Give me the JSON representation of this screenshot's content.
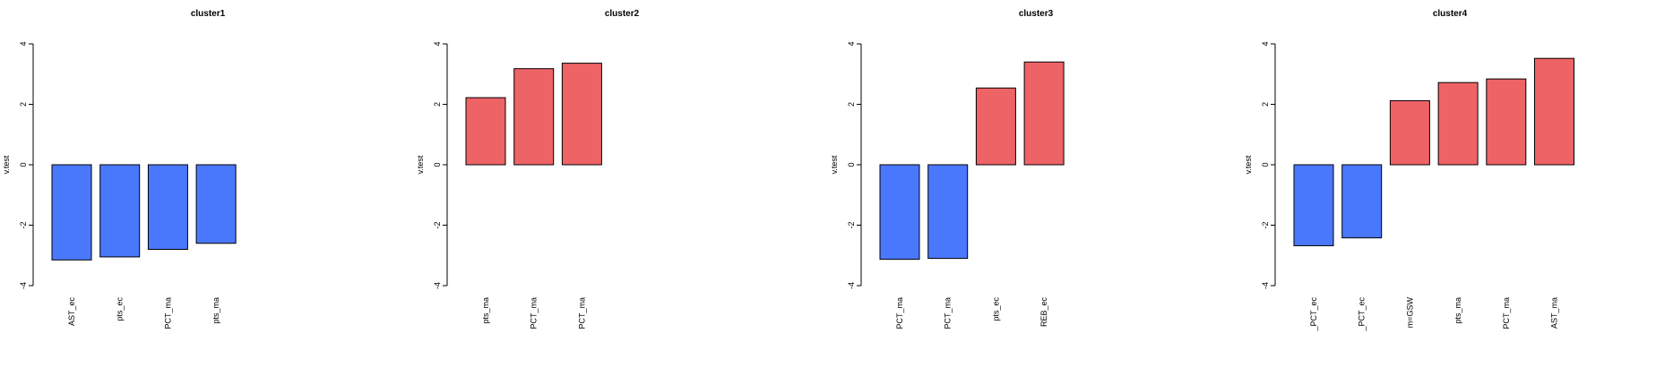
{
  "colors": {
    "positive": "#EE6366",
    "negative": "#4A78FC"
  },
  "chart_data": [
    {
      "type": "bar",
      "title": "cluster1",
      "ylabel": "v.test",
      "ylim": [
        -4,
        4
      ],
      "yticks": [
        "-4",
        "-2",
        "0",
        "2",
        "4"
      ],
      "categories": [
        "AST_ec",
        "pts_ec",
        "PCT_ma",
        "pts_ma"
      ],
      "values": [
        -3.15,
        -3.05,
        -2.8,
        -2.6
      ]
    },
    {
      "type": "bar",
      "title": "cluster2",
      "ylabel": "v.test",
      "ylim": [
        -4,
        4
      ],
      "yticks": [
        "-4",
        "-2",
        "0",
        "2",
        "4"
      ],
      "categories": [
        "pts_ma",
        "PCT_ma",
        "PCT_ma"
      ],
      "values": [
        2.22,
        3.18,
        3.36
      ]
    },
    {
      "type": "bar",
      "title": "cluster3",
      "ylabel": "v.test",
      "ylim": [
        -4,
        4
      ],
      "yticks": [
        "-4",
        "-2",
        "0",
        "2",
        "4"
      ],
      "categories": [
        "PCT_ma",
        "PCT_ma",
        "pts_ec",
        "REB_ec"
      ],
      "values": [
        -3.13,
        -3.1,
        2.54,
        3.4
      ]
    },
    {
      "type": "bar",
      "title": "cluster4",
      "ylabel": "v.test",
      "ylim": [
        -4,
        4
      ],
      "yticks": [
        "-4",
        "-2",
        "0",
        "2",
        "4"
      ],
      "categories": [
        "_PCT_ec",
        "_PCT_ec",
        "m=GSW",
        "pts_ma",
        "PCT_ma",
        "AST_ma"
      ],
      "values": [
        -2.68,
        -2.42,
        2.12,
        2.72,
        2.84,
        3.52
      ]
    }
  ]
}
